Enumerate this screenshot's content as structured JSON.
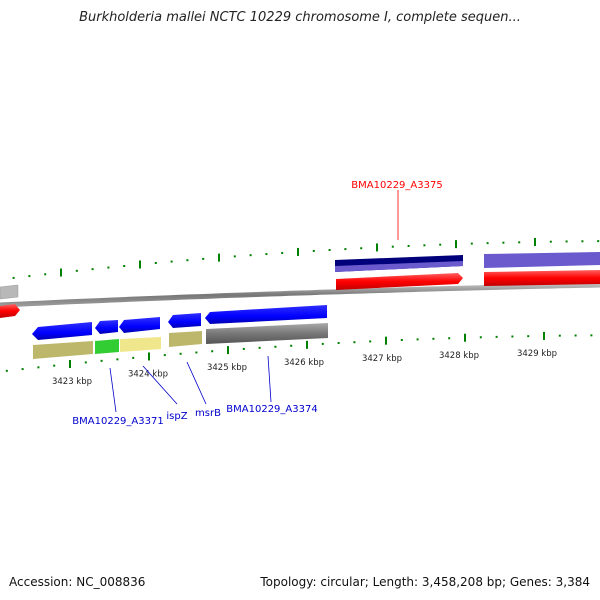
{
  "title": "Burkholderia mallei NCTC 10229 chromosome I, complete sequen...",
  "footer": {
    "accession": "Accession: NC_008836",
    "summary": "Topology: circular; Length: 3,458,208 bp; Genes: 3,384"
  },
  "ticks": {
    "lower_labels": [
      "3423 kbp",
      "3424 kbp",
      "3425 kbp",
      "3426 kbp",
      "3427 kbp",
      "3428 kbp",
      "3429 kbp"
    ]
  },
  "gene_labels": [
    {
      "name": "BMA10229_A3375",
      "color": "#ff0000"
    },
    {
      "name": "BMA10229_A3371",
      "color": "#0000cc"
    },
    {
      "name": "ispZ",
      "color": "#0000cc"
    },
    {
      "name": "msrB",
      "color": "#0000cc"
    },
    {
      "name": "BMA10229_A3374",
      "color": "#0000cc"
    }
  ],
  "colors": {
    "forward_cds": "#ff0000",
    "reverse_cds": "#0000ff",
    "tick": "#008000",
    "backbone": "#888888"
  }
}
